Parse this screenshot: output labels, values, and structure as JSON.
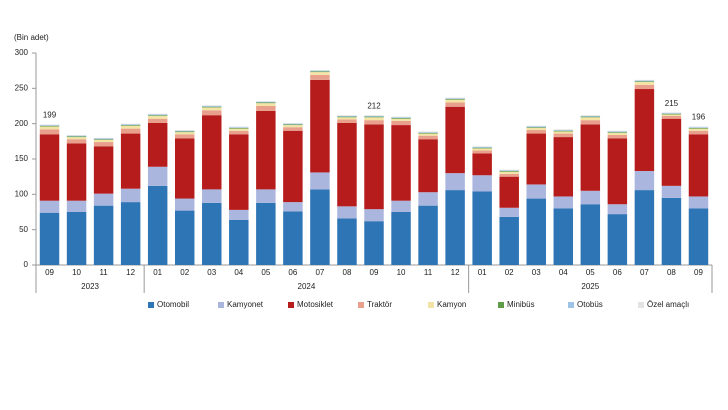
{
  "chart_data": {
    "type": "stacked-bar",
    "unit_label": "(Bin adet)",
    "categories": [
      "09",
      "10",
      "11",
      "12",
      "01",
      "02",
      "03",
      "04",
      "05",
      "06",
      "07",
      "08",
      "09",
      "10",
      "11",
      "12",
      "01",
      "02",
      "03",
      "04",
      "05",
      "06",
      "07",
      "08",
      "09"
    ],
    "years": [
      null,
      "2023",
      null,
      null,
      null,
      null,
      null,
      null,
      null,
      "2024",
      null,
      null,
      null,
      null,
      null,
      null,
      null,
      null,
      null,
      null,
      "2025",
      null,
      null,
      null,
      null
    ],
    "series": [
      {
        "name": "Otomobil",
        "color": "#2e75b6",
        "values": [
          74,
          75,
          84,
          89,
          112,
          77,
          88,
          64,
          88,
          76,
          107,
          66,
          62,
          75,
          84,
          106,
          104,
          68,
          94,
          80,
          86,
          72,
          106,
          95,
          80
        ]
      },
      {
        "name": "Kamyonet",
        "color": "#aab6de",
        "values": [
          17,
          16,
          17,
          19,
          27,
          17,
          19,
          14,
          19,
          13,
          24,
          17,
          17,
          16,
          19,
          24,
          23,
          13,
          20,
          17,
          19,
          14,
          27,
          17,
          17
        ]
      },
      {
        "name": "Motosiklet",
        "color": "#b71c1c",
        "values": [
          94,
          81,
          67,
          78,
          62,
          85,
          105,
          107,
          111,
          101,
          131,
          118,
          120,
          107,
          75,
          94,
          31,
          44,
          72,
          84,
          94,
          93,
          116,
          95,
          88
        ]
      },
      {
        "name": "Traktör",
        "color": "#e8a08c",
        "values": [
          7,
          6,
          6,
          7,
          6,
          6,
          7,
          5,
          7,
          5,
          7,
          5,
          6,
          6,
          5,
          6,
          4,
          4,
          5,
          5,
          6,
          5,
          6,
          4,
          5
        ]
      },
      {
        "name": "Kamyon",
        "color": "#f3e4a6",
        "values": [
          4,
          3,
          3,
          4,
          4,
          3,
          4,
          3,
          4,
          3,
          4,
          3,
          4,
          3,
          3,
          4,
          3,
          3,
          3,
          3,
          4,
          3,
          4,
          2,
          3
        ]
      },
      {
        "name": "Minibüs",
        "color": "#5e9c4a",
        "values": [
          1,
          1,
          1,
          1,
          1,
          1,
          1,
          1,
          1,
          1,
          1,
          1,
          1,
          1,
          1,
          1,
          1,
          1,
          1,
          1,
          1,
          1,
          1,
          1,
          1
        ]
      },
      {
        "name": "Otobüs",
        "color": "#9dc3e6",
        "values": [
          1,
          1,
          1,
          1,
          1,
          1,
          1,
          1,
          1,
          1,
          1,
          1,
          1,
          1,
          1,
          1,
          1,
          1,
          1,
          1,
          1,
          1,
          1,
          1,
          1
        ]
      },
      {
        "name": "Özel amaçlı",
        "color": "#e3e3e3",
        "values": [
          1,
          1,
          1,
          1,
          1,
          1,
          1,
          1,
          1,
          1,
          1,
          1,
          1,
          1,
          1,
          1,
          1,
          1,
          1,
          1,
          1,
          1,
          1,
          1,
          1
        ]
      }
    ],
    "totals": [
      199,
      null,
      null,
      null,
      null,
      null,
      null,
      null,
      null,
      null,
      null,
      null,
      212,
      null,
      null,
      null,
      null,
      null,
      null,
      null,
      null,
      null,
      null,
      215,
      196
    ],
    "ylim": [
      0,
      300
    ],
    "yticks": [
      0,
      50,
      100,
      150,
      200,
      250,
      300
    ]
  }
}
